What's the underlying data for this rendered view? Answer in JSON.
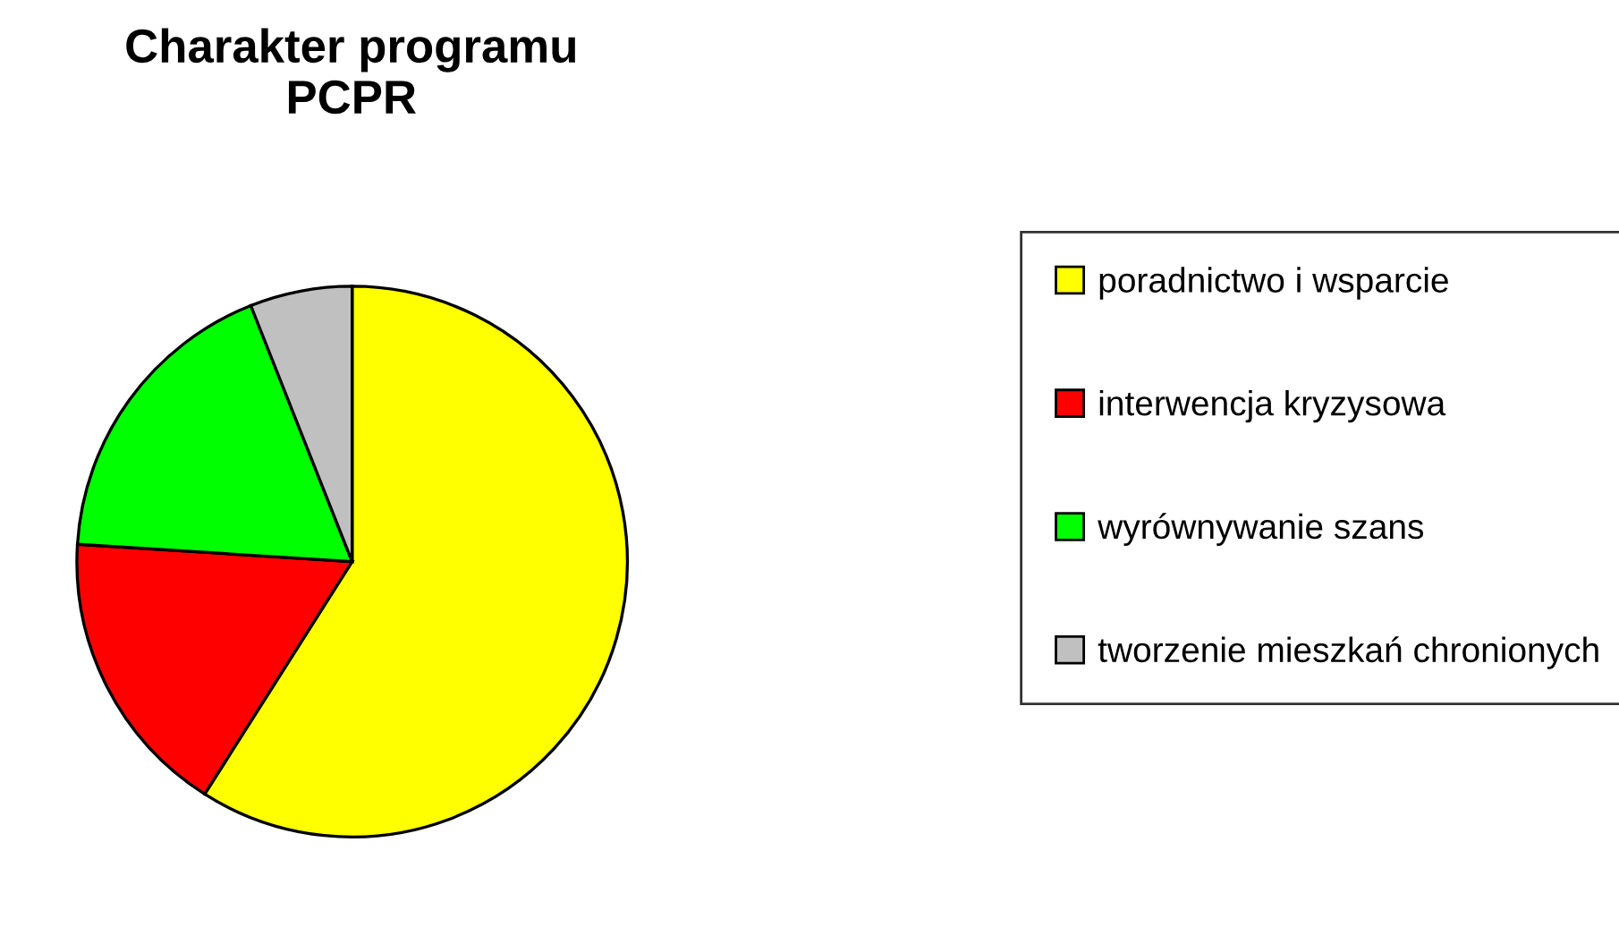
{
  "chart_data": {
    "type": "pie",
    "title": "Charakter programu\nPCPR",
    "categories": [
      "poradnictwo i wsparcie",
      "interwencja kryzysowa",
      "wyrównywanie szans",
      "tworzenie mieszkań chronionych"
    ],
    "values": [
      59,
      17,
      18,
      6
    ],
    "colors": [
      "#ffff00",
      "#ff0000",
      "#00ff00",
      "#c0c0c0"
    ],
    "legend": "right"
  }
}
